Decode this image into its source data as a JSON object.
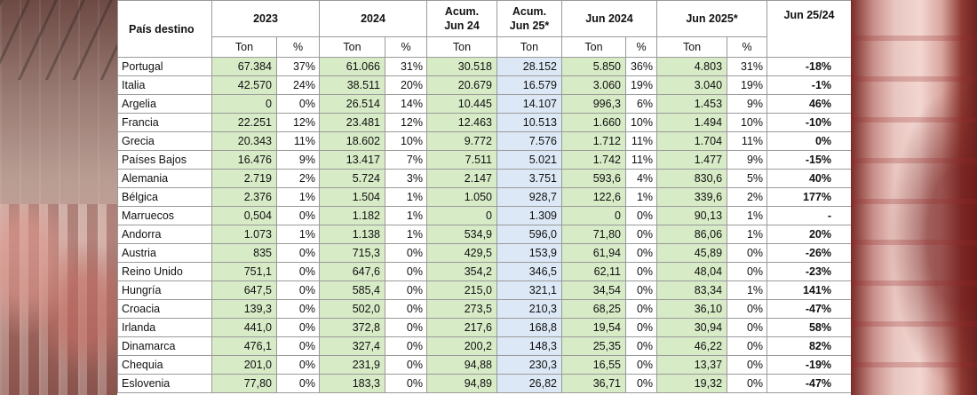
{
  "header": {
    "country": "País destino",
    "y2023": "2023",
    "y2024": "2024",
    "acum24_l1": "Acum.",
    "acum24_l2": "Jun 24",
    "acum25_l1": "Acum.",
    "acum25_l2": "Jun 25*",
    "jun2024": "Jun 2024",
    "jun2025": "Jun 2025*",
    "var": "Jun 25/24",
    "ton": "Ton",
    "pct": "%"
  },
  "rows": [
    {
      "pais": "Portugal",
      "t23": "67.384",
      "p23": "37%",
      "t24": "61.066",
      "p24": "31%",
      "a24": "30.518",
      "a25": "28.152",
      "j24": "5.850",
      "pj24": "36%",
      "j25": "4.803",
      "pj25": "31%",
      "var": "-18%"
    },
    {
      "pais": "Italia",
      "t23": "42.570",
      "p23": "24%",
      "t24": "38.511",
      "p24": "20%",
      "a24": "20.679",
      "a25": "16.579",
      "j24": "3.060",
      "pj24": "19%",
      "j25": "3.040",
      "pj25": "19%",
      "var": "-1%"
    },
    {
      "pais": "Argelia",
      "t23": "0",
      "p23": "0%",
      "t24": "26.514",
      "p24": "14%",
      "a24": "10.445",
      "a25": "14.107",
      "j24": "996,3",
      "pj24": "6%",
      "j25": "1.453",
      "pj25": "9%",
      "var": "46%"
    },
    {
      "pais": "Francia",
      "t23": "22.251",
      "p23": "12%",
      "t24": "23.481",
      "p24": "12%",
      "a24": "12.463",
      "a25": "10.513",
      "j24": "1.660",
      "pj24": "10%",
      "j25": "1.494",
      "pj25": "10%",
      "var": "-10%"
    },
    {
      "pais": "Grecia",
      "t23": "20.343",
      "p23": "11%",
      "t24": "18.602",
      "p24": "10%",
      "a24": "9.772",
      "a25": "7.576",
      "j24": "1.712",
      "pj24": "11%",
      "j25": "1.704",
      "pj25": "11%",
      "var": "0%"
    },
    {
      "pais": "Países Bajos",
      "t23": "16.476",
      "p23": "9%",
      "t24": "13.417",
      "p24": "7%",
      "a24": "7.511",
      "a25": "5.021",
      "j24": "1.742",
      "pj24": "11%",
      "j25": "1.477",
      "pj25": "9%",
      "var": "-15%"
    },
    {
      "pais": "Alemania",
      "t23": "2.719",
      "p23": "2%",
      "t24": "5.724",
      "p24": "3%",
      "a24": "2.147",
      "a25": "3.751",
      "j24": "593,6",
      "pj24": "4%",
      "j25": "830,6",
      "pj25": "5%",
      "var": "40%"
    },
    {
      "pais": "Bélgica",
      "t23": "2.376",
      "p23": "1%",
      "t24": "1.504",
      "p24": "1%",
      "a24": "1.050",
      "a25": "928,7",
      "j24": "122,6",
      "pj24": "1%",
      "j25": "339,6",
      "pj25": "2%",
      "var": "177%"
    },
    {
      "pais": "Marruecos",
      "t23": "0,504",
      "p23": "0%",
      "t24": "1.182",
      "p24": "1%",
      "a24": "0",
      "a25": "1.309",
      "j24": "0",
      "pj24": "0%",
      "j25": "90,13",
      "pj25": "1%",
      "var": "-"
    },
    {
      "pais": "Andorra",
      "t23": "1.073",
      "p23": "1%",
      "t24": "1.138",
      "p24": "1%",
      "a24": "534,9",
      "a25": "596,0",
      "j24": "71,80",
      "pj24": "0%",
      "j25": "86,06",
      "pj25": "1%",
      "var": "20%"
    },
    {
      "pais": "Austria",
      "t23": "835",
      "p23": "0%",
      "t24": "715,3",
      "p24": "0%",
      "a24": "429,5",
      "a25": "153,9",
      "j24": "61,94",
      "pj24": "0%",
      "j25": "45,89",
      "pj25": "0%",
      "var": "-26%"
    },
    {
      "pais": "Reino Unido",
      "t23": "751,1",
      "p23": "0%",
      "t24": "647,6",
      "p24": "0%",
      "a24": "354,2",
      "a25": "346,5",
      "j24": "62,11",
      "pj24": "0%",
      "j25": "48,04",
      "pj25": "0%",
      "var": "-23%"
    },
    {
      "pais": "Hungría",
      "t23": "647,5",
      "p23": "0%",
      "t24": "585,4",
      "p24": "0%",
      "a24": "215,0",
      "a25": "321,1",
      "j24": "34,54",
      "pj24": "0%",
      "j25": "83,34",
      "pj25": "1%",
      "var": "141%"
    },
    {
      "pais": "Croacia",
      "t23": "139,3",
      "p23": "0%",
      "t24": "502,0",
      "p24": "0%",
      "a24": "273,5",
      "a25": "210,3",
      "j24": "68,25",
      "pj24": "0%",
      "j25": "36,10",
      "pj25": "0%",
      "var": "-47%"
    },
    {
      "pais": "Irlanda",
      "t23": "441,0",
      "p23": "0%",
      "t24": "372,8",
      "p24": "0%",
      "a24": "217,6",
      "a25": "168,8",
      "j24": "19,54",
      "pj24": "0%",
      "j25": "30,94",
      "pj25": "0%",
      "var": "58%"
    },
    {
      "pais": "Dinamarca",
      "t23": "476,1",
      "p23": "0%",
      "t24": "327,4",
      "p24": "0%",
      "a24": "200,2",
      "a25": "148,3",
      "j24": "25,35",
      "pj24": "0%",
      "j25": "46,22",
      "pj25": "0%",
      "var": "82%"
    },
    {
      "pais": "Chequia",
      "t23": "201,0",
      "p23": "0%",
      "t24": "231,9",
      "p24": "0%",
      "a24": "94,88",
      "a25": "230,3",
      "j24": "16,55",
      "pj24": "0%",
      "j25": "13,37",
      "pj25": "0%",
      "var": "-19%"
    },
    {
      "pais": "Eslovenia",
      "t23": "77,80",
      "p23": "0%",
      "t24": "183,3",
      "p24": "0%",
      "a24": "94,89",
      "a25": "26,82",
      "j24": "36,71",
      "pj24": "0%",
      "j25": "19,32",
      "pj25": "0%",
      "var": "-47%"
    }
  ],
  "colors": {
    "green_cell": "#d7ebc6",
    "blue_cell": "#dce8f5",
    "border": "#9a9a9a"
  }
}
